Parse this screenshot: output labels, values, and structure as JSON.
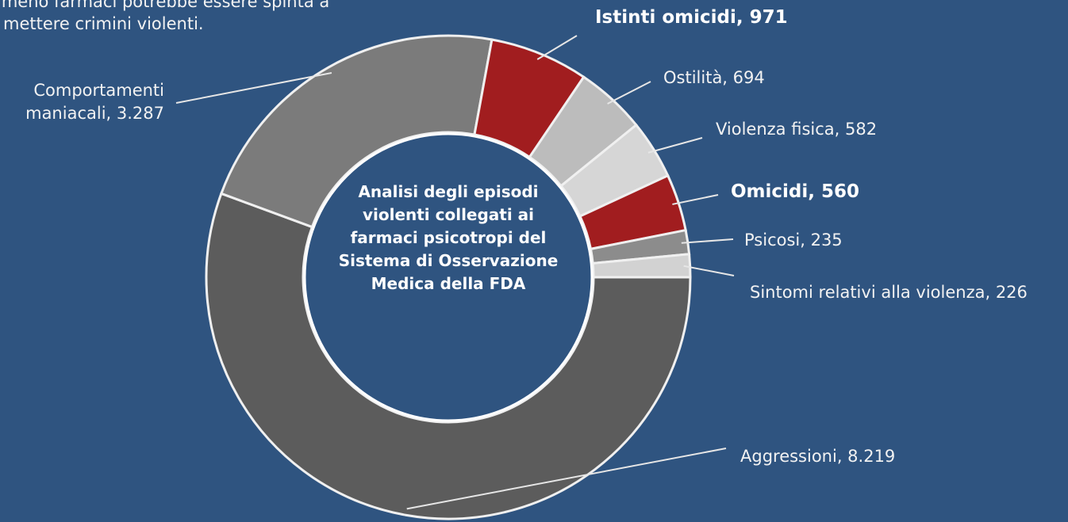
{
  "chart_data": {
    "type": "donut",
    "title": "Analisi degli episodi violenti collegati ai farmaci psicotropi del Sistema di Osservazione Medica della FDA",
    "annotation": [
      "lmeno farmaci potrebbe essere spinta a",
      "mettere crimini violenti."
    ],
    "values": [
      8219,
      3287,
      971,
      694,
      582,
      560,
      235,
      226
    ],
    "value_labels": [
      "Aggressioni, 8.219",
      "Comportamenti maniacali, 3.287",
      "Istinti omicidi, 971",
      "Ostilità, 694",
      "Violenza fisica, 582",
      "Omicidi, 560",
      "Psicosi, 235",
      "Sintomi relativi alla violenza, 226"
    ],
    "colors": [
      "#5c5c5c",
      "#7b7b7b",
      "#a11d1f",
      "#bcbcbc",
      "#d6d6d6",
      "#a11d1f",
      "#8c8c8c",
      "#d2d2d2"
    ],
    "label_bold": [
      false,
      false,
      true,
      false,
      false,
      true,
      false,
      false
    ]
  }
}
